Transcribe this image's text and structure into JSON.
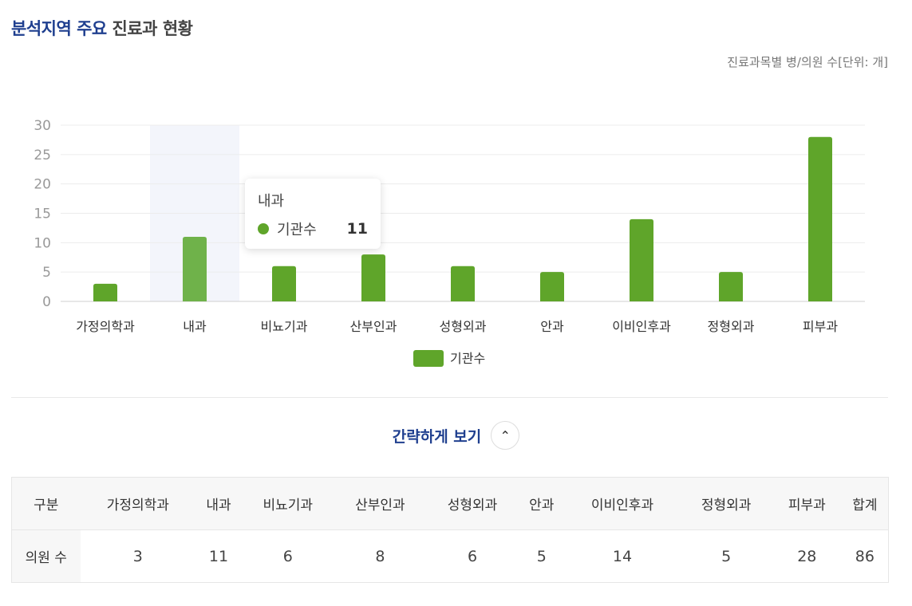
{
  "header": {
    "title_highlight": "분석지역 주요",
    "title_rest": "진료과 현황",
    "unit_note": "진료과목별 병/의원 수[단위: 개]"
  },
  "chart_data": {
    "type": "bar",
    "categories": [
      "가정의학과",
      "내과",
      "비뇨기과",
      "산부인과",
      "성형외과",
      "안과",
      "이비인후과",
      "정형외과",
      "피부과"
    ],
    "series": [
      {
        "name": "기관수",
        "values": [
          3,
          11,
          6,
          8,
          6,
          5,
          14,
          5,
          28
        ]
      }
    ],
    "ylim": [
      0,
      30
    ],
    "yticks": [
      0,
      5,
      10,
      15,
      20,
      25,
      30
    ],
    "grid": true,
    "legend": "bottom-center",
    "highlighted_category": "내과",
    "bar_color": "#5fa52a",
    "highlight_bar_color": "#6fb24a",
    "highlight_band_color": "#f3f5fb"
  },
  "tooltip": {
    "category": "내과",
    "series_label": "기관수",
    "value": "11"
  },
  "toggle": {
    "label": "간략하게 보기",
    "icon": "chevron-up-icon"
  },
  "table": {
    "headers": [
      "구분",
      "가정의학과",
      "내과",
      "비뇨기과",
      "산부인과",
      "성형외과",
      "안과",
      "이비인후과",
      "정형외과",
      "피부과",
      "합계"
    ],
    "row_label": "의원 수",
    "values": [
      "3",
      "11",
      "6",
      "8",
      "6",
      "5",
      "14",
      "5",
      "28",
      "86"
    ]
  }
}
